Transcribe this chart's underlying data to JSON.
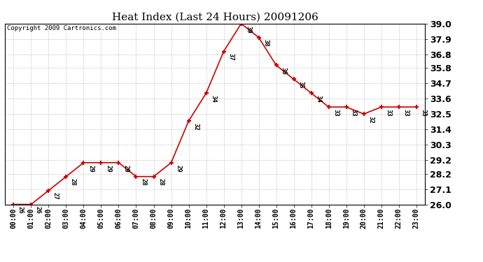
{
  "title": "Heat Index (Last 24 Hours) 20091206",
  "copyright": "Copyright 2009 Cartronics.com",
  "x_labels": [
    "00:00",
    "01:00",
    "02:00",
    "03:00",
    "04:00",
    "05:00",
    "06:00",
    "07:00",
    "08:00",
    "09:00",
    "10:00",
    "11:00",
    "12:00",
    "13:00",
    "14:00",
    "15:00",
    "16:00",
    "17:00",
    "18:00",
    "19:00",
    "20:00",
    "21:00",
    "22:00",
    "23:00"
  ],
  "y_values": [
    26,
    26,
    27,
    28,
    29,
    29,
    29,
    28,
    28,
    29,
    32,
    34,
    37,
    39,
    38,
    36,
    35,
    34,
    33,
    33,
    32.5,
    33,
    33,
    33
  ],
  "ylim_min": 26.0,
  "ylim_max": 39.0,
  "y_ticks": [
    26.0,
    27.1,
    28.2,
    29.2,
    30.3,
    31.4,
    32.5,
    33.6,
    34.7,
    35.8,
    36.8,
    37.9,
    39.0
  ],
  "line_color": "#cc0000",
  "marker_color": "#cc0000",
  "bg_color": "#ffffff",
  "grid_color": "#bbbbbb",
  "title_fontsize": 11,
  "label_fontsize": 7,
  "annotation_fontsize": 6.5,
  "copyright_fontsize": 6.5,
  "ytick_fontsize": 9
}
